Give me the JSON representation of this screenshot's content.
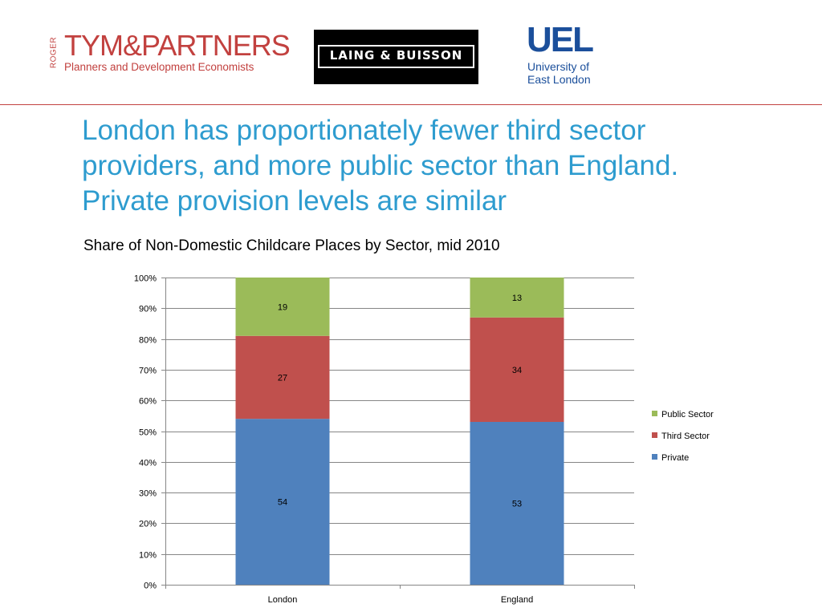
{
  "logos": {
    "rtp": {
      "roger": "ROGER",
      "name": "TYM&PARTNERS",
      "tagline": "Planners and Development Economists"
    },
    "laing_buisson": "LAING & BUISSON",
    "uel": {
      "mark": "UEL",
      "line1": "University of",
      "line2": "East London"
    }
  },
  "headline": [
    "London has proportionately fewer third sector",
    "providers, and more public sector than England.",
    "Private provision levels are similar"
  ],
  "chart_data": {
    "type": "bar",
    "stacked": true,
    "title": "Share of Non-Domestic Childcare Places by Sector, mid 2010",
    "xlabel": "",
    "ylabel": "",
    "categories": [
      "London",
      "England"
    ],
    "series": [
      {
        "name": "Private",
        "color": "#4f81bd",
        "values": [
          54,
          53
        ]
      },
      {
        "name": "Third Sector",
        "color": "#c0504d",
        "values": [
          27,
          34
        ]
      },
      {
        "name": "Public Sector",
        "color": "#9bbb59",
        "values": [
          19,
          13
        ]
      }
    ],
    "ylim": [
      0,
      100
    ],
    "yticks": [
      "0%",
      "10%",
      "20%",
      "30%",
      "40%",
      "50%",
      "60%",
      "70%",
      "80%",
      "90%",
      "100%"
    ],
    "grid": true,
    "legend": {
      "position": "right",
      "order": [
        "Public Sector",
        "Third Sector",
        "Private"
      ]
    }
  }
}
